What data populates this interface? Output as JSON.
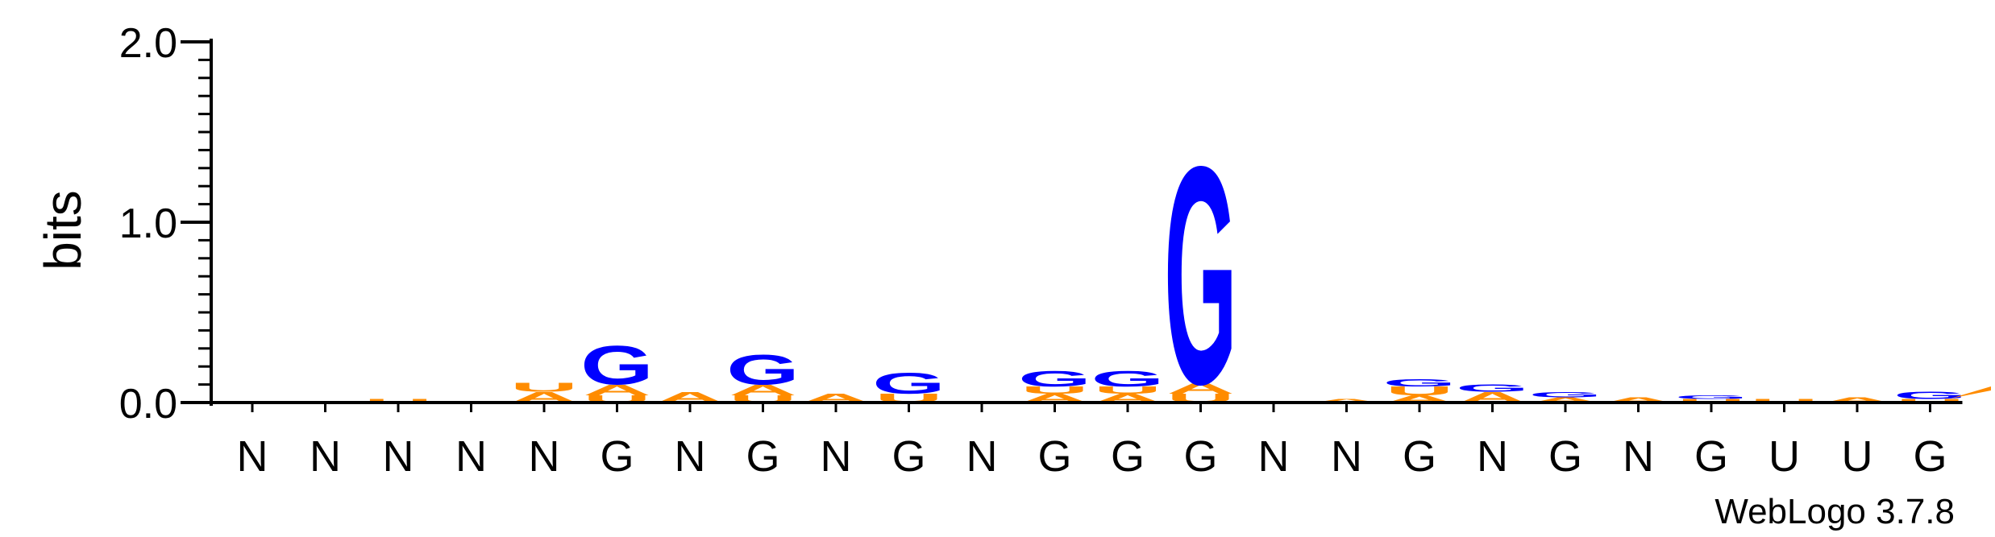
{
  "chart_data": {
    "type": "sequence_logo",
    "ylabel": "bits",
    "ylim": [
      0,
      2.0
    ],
    "yticks": [
      "0.0",
      "1.0",
      "2.0"
    ],
    "colors": {
      "G": "#0000ff",
      "A": "#ff8c00",
      "U": "#ff8c00",
      "C": "#0000ff"
    },
    "positions": [
      {
        "label": "N",
        "stack": []
      },
      {
        "label": "N",
        "stack": []
      },
      {
        "label": "N",
        "stack": [
          {
            "letter": "U",
            "bits": 0.02
          }
        ]
      },
      {
        "label": "N",
        "stack": []
      },
      {
        "label": "N",
        "stack": [
          {
            "letter": "A",
            "bits": 0.06
          },
          {
            "letter": "U",
            "bits": 0.05
          }
        ]
      },
      {
        "label": "G",
        "stack": [
          {
            "letter": "U",
            "bits": 0.04
          },
          {
            "letter": "A",
            "bits": 0.06
          },
          {
            "letter": "G",
            "bits": 0.22
          }
        ]
      },
      {
        "label": "N",
        "stack": [
          {
            "letter": "A",
            "bits": 0.06
          }
        ]
      },
      {
        "label": "G",
        "stack": [
          {
            "letter": "U",
            "bits": 0.04
          },
          {
            "letter": "A",
            "bits": 0.06
          },
          {
            "letter": "G",
            "bits": 0.17
          }
        ]
      },
      {
        "label": "N",
        "stack": [
          {
            "letter": "A",
            "bits": 0.05
          }
        ]
      },
      {
        "label": "G",
        "stack": [
          {
            "letter": "U",
            "bits": 0.05
          },
          {
            "letter": "G",
            "bits": 0.12
          }
        ]
      },
      {
        "label": "N",
        "stack": []
      },
      {
        "label": "G",
        "stack": [
          {
            "letter": "A",
            "bits": 0.05
          },
          {
            "letter": "U",
            "bits": 0.04
          },
          {
            "letter": "G",
            "bits": 0.09
          }
        ]
      },
      {
        "label": "G",
        "stack": [
          {
            "letter": "A",
            "bits": 0.05
          },
          {
            "letter": "U",
            "bits": 0.04
          },
          {
            "letter": "G",
            "bits": 0.09
          }
        ]
      },
      {
        "label": "G",
        "stack": [
          {
            "letter": "U",
            "bits": 0.05
          },
          {
            "letter": "A",
            "bits": 0.06
          },
          {
            "letter": "G",
            "bits": 1.24
          }
        ]
      },
      {
        "label": "N",
        "stack": []
      },
      {
        "label": "N",
        "stack": [
          {
            "letter": "A",
            "bits": 0.02
          }
        ]
      },
      {
        "label": "G",
        "stack": [
          {
            "letter": "A",
            "bits": 0.04
          },
          {
            "letter": "U",
            "bits": 0.05
          },
          {
            "letter": "G",
            "bits": 0.04
          }
        ]
      },
      {
        "label": "N",
        "stack": [
          {
            "letter": "A",
            "bits": 0.06
          },
          {
            "letter": "G",
            "bits": 0.04
          }
        ]
      },
      {
        "label": "G",
        "stack": [
          {
            "letter": "A",
            "bits": 0.03
          },
          {
            "letter": "G",
            "bits": 0.03
          }
        ]
      },
      {
        "label": "N",
        "stack": [
          {
            "letter": "A",
            "bits": 0.03
          }
        ]
      },
      {
        "label": "G",
        "stack": [
          {
            "letter": "U",
            "bits": 0.02
          },
          {
            "letter": "G",
            "bits": 0.02
          }
        ]
      },
      {
        "label": "U",
        "stack": [
          {
            "letter": "U",
            "bits": 0.02
          }
        ]
      },
      {
        "label": "U",
        "stack": [
          {
            "letter": "A",
            "bits": 0.03
          }
        ]
      },
      {
        "label": "G",
        "stack": [
          {
            "letter": "U",
            "bits": 0.02
          },
          {
            "letter": "G",
            "bits": 0.04
          }
        ]
      }
    ]
  },
  "credit": "WebLogo 3.7.8"
}
